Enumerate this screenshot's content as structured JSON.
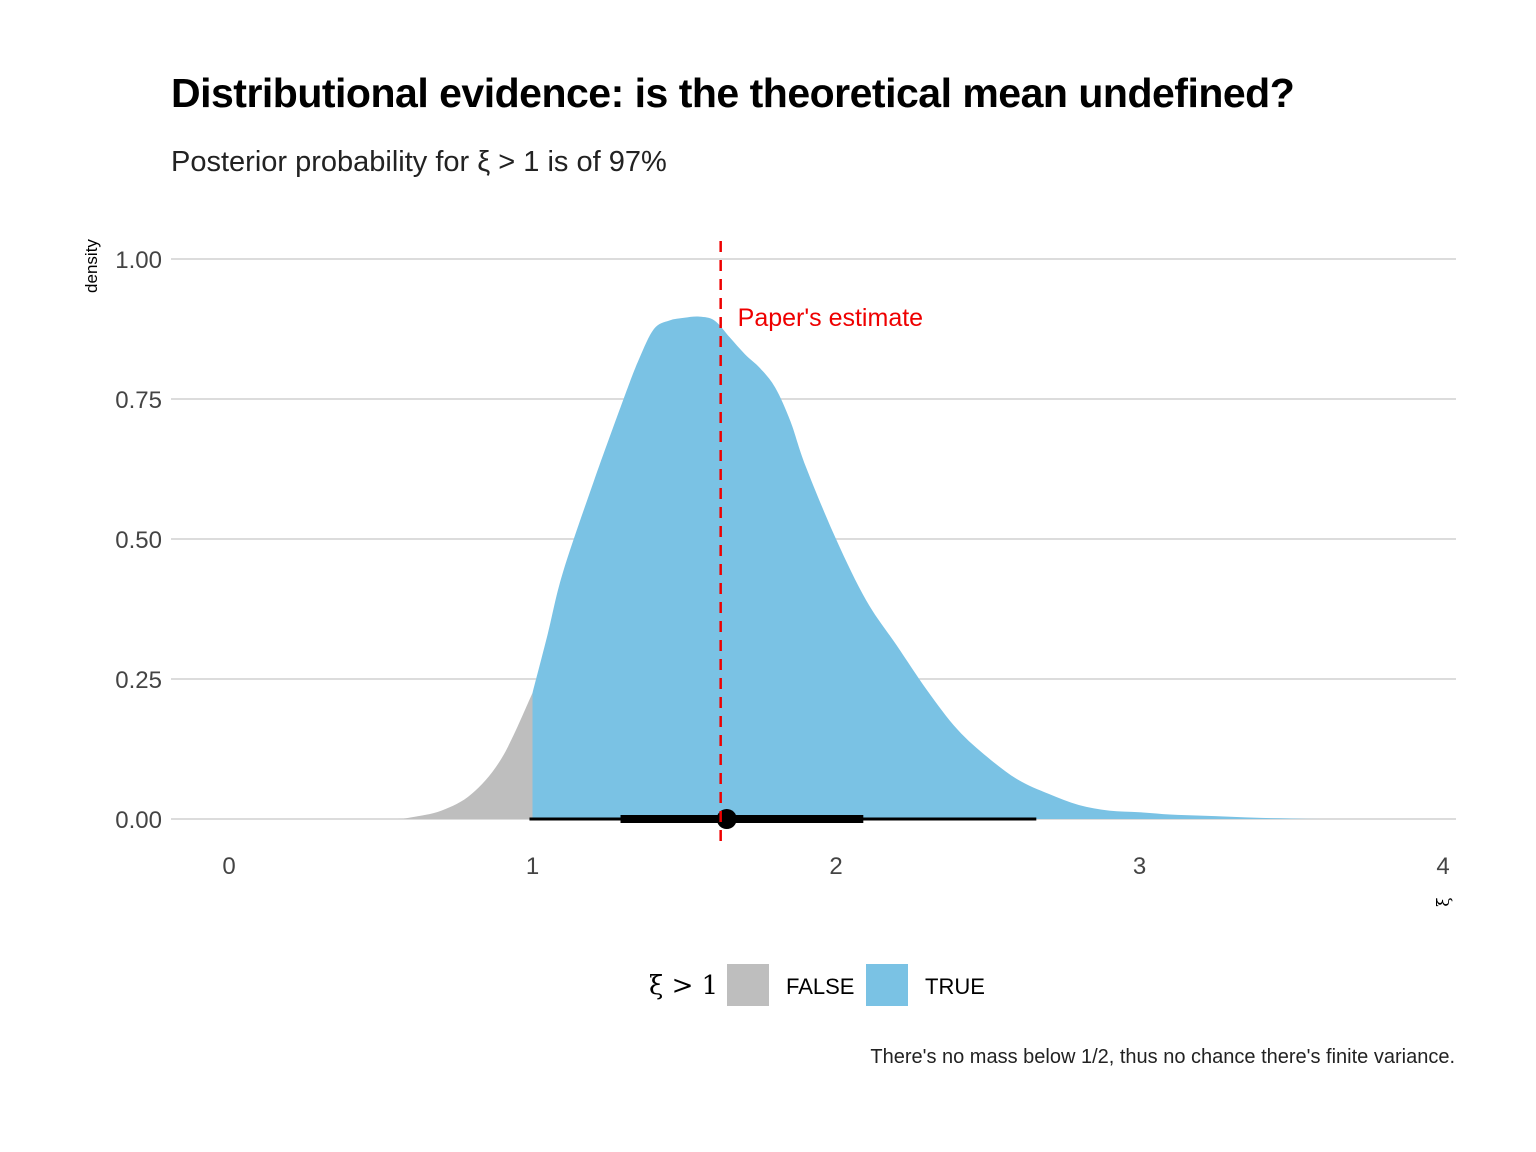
{
  "chart_data": {
    "type": "area",
    "title": "Distributional evidence: is the theoretical mean undefined?",
    "subtitle": "Posterior probability for ξ > 1 is of 97%",
    "caption": "There's no mass below 1/2, thus no chance there's finite variance.",
    "xlabel": "ξ",
    "ylabel": "density",
    "xlim": [
      0,
      4
    ],
    "ylim": [
      0,
      1.0
    ],
    "x_ticks": [
      "0",
      "1",
      "2",
      "3",
      "4"
    ],
    "y_ticks": [
      "0.00",
      "0.25",
      "0.50",
      "0.75",
      "1.00"
    ],
    "grid": "horizontal major lines",
    "legend": {
      "title": "ξ > 1",
      "position": "bottom",
      "entries": [
        {
          "label": "FALSE",
          "color": "#bebebe"
        },
        {
          "label": "TRUE",
          "color": "#7ac2e4"
        }
      ]
    },
    "density_curve": {
      "x": [
        0.55,
        0.6,
        0.7,
        0.8,
        0.9,
        1.0,
        1.05,
        1.1,
        1.2,
        1.3,
        1.35,
        1.4,
        1.45,
        1.5,
        1.55,
        1.6,
        1.65,
        1.7,
        1.75,
        1.8,
        1.85,
        1.9,
        2.0,
        2.1,
        2.2,
        2.3,
        2.4,
        2.5,
        2.6,
        2.7,
        2.8,
        2.9,
        3.0,
        3.1,
        3.2,
        3.3,
        3.4,
        3.5,
        3.6,
        3.7,
        3.8
      ],
      "y": [
        0.0,
        0.003,
        0.015,
        0.045,
        0.11,
        0.225,
        0.33,
        0.44,
        0.6,
        0.75,
        0.82,
        0.875,
        0.89,
        0.895,
        0.897,
        0.89,
        0.86,
        0.83,
        0.805,
        0.77,
        0.71,
        0.63,
        0.5,
        0.39,
        0.31,
        0.23,
        0.16,
        0.11,
        0.07,
        0.045,
        0.025,
        0.015,
        0.012,
        0.008,
        0.006,
        0.004,
        0.002,
        0.001,
        0.0,
        0.0,
        0.0
      ]
    },
    "fill_split_x": 1.0,
    "point_interval": {
      "point": 1.64,
      "inner_interval": [
        1.29,
        2.09
      ],
      "outer_interval": [
        0.99,
        2.66
      ]
    },
    "reference_line": {
      "x": 1.62,
      "style": "dashed",
      "color": "#ee0000",
      "label": "Paper's estimate"
    }
  }
}
